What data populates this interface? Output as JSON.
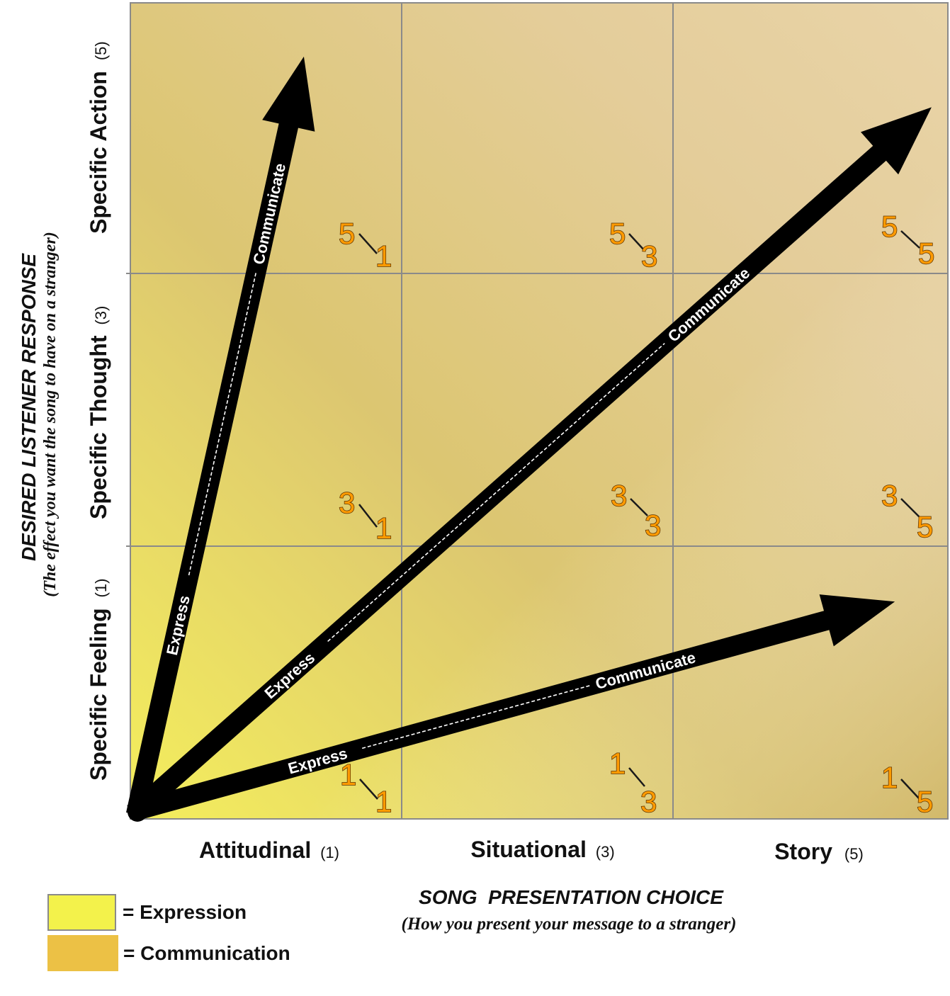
{
  "y_axis": {
    "title": "DESIRED LISTENER RESPONSE",
    "subtitle": "(The effect you want the song to have on a stranger)",
    "levels": [
      {
        "label": "Specific Feeling",
        "value": "(1)"
      },
      {
        "label": "Specific Thought",
        "value": "(3)"
      },
      {
        "label": "Specific Action",
        "value": "(5)"
      }
    ]
  },
  "x_axis": {
    "title": "SONG  PRESENTATION CHOICE",
    "subtitle": "(How you present your message to a stranger)",
    "levels": [
      {
        "label": "Attitudinal",
        "value": "(1)"
      },
      {
        "label": "Situational",
        "value": "(3)"
      },
      {
        "label": "Story",
        "value": "(5)"
      }
    ]
  },
  "cells": [
    {
      "top": "5",
      "bottom": "1"
    },
    {
      "top": "5",
      "bottom": "3"
    },
    {
      "top": "5",
      "bottom": "5"
    },
    {
      "top": "3",
      "bottom": "1"
    },
    {
      "top": "3",
      "bottom": "3"
    },
    {
      "top": "3",
      "bottom": "5"
    },
    {
      "top": "1",
      "bottom": "1"
    },
    {
      "top": "1",
      "bottom": "3"
    },
    {
      "top": "1",
      "bottom": "5"
    }
  ],
  "arrows": [
    {
      "start_label": "Express",
      "end_label": "Communicate"
    },
    {
      "start_label": "Express",
      "end_label": "Communicate"
    },
    {
      "start_label": "Express",
      "end_label": "Communicate"
    }
  ],
  "legend": {
    "expression": {
      "label": "= Expression",
      "color": "#f3f24b"
    },
    "communication": {
      "label": "= Communication",
      "color": "#ecc145"
    }
  },
  "colors": {
    "number": "#ff9a00",
    "grid": "#8a8a8a"
  }
}
